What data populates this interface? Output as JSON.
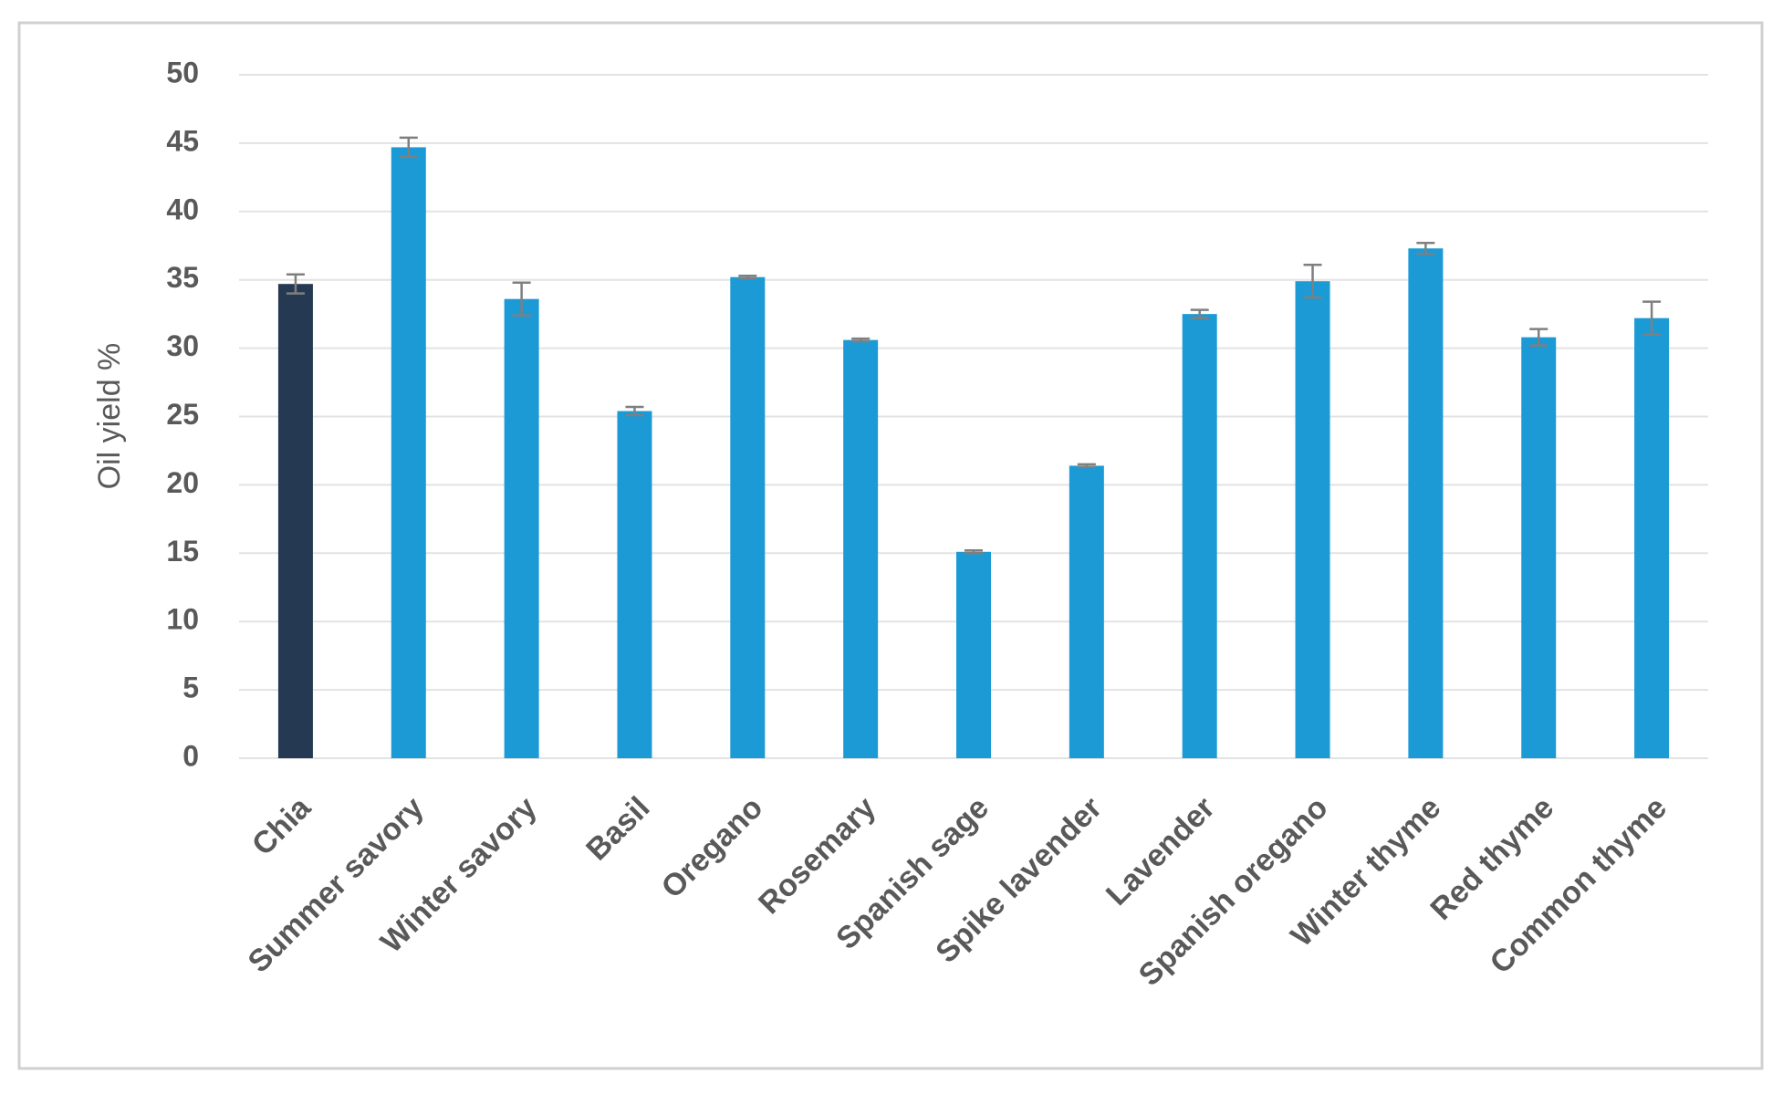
{
  "chart_data": {
    "type": "bar",
    "y_label": "Oil yield %",
    "categories": [
      "Chia",
      "Summer savory",
      "Winter savory",
      "Basil",
      "Oregano",
      "Rosemary",
      "Spanish sage",
      "Spike lavender",
      "Lavender",
      "Spanish oregano",
      "Winter thyme",
      "Red thyme",
      "Common thyme"
    ],
    "values": [
      34.7,
      44.7,
      33.6,
      25.4,
      35.2,
      30.6,
      15.1,
      21.4,
      32.5,
      34.9,
      37.3,
      30.8,
      32.2
    ],
    "errors": [
      0.7,
      0.7,
      1.2,
      0.3,
      0.1,
      0.1,
      0.1,
      0.1,
      0.3,
      1.2,
      0.4,
      0.6,
      1.2
    ],
    "colors": [
      "#253a52",
      "#1b9ad6",
      "#1b9ad6",
      "#1b9ad6",
      "#1b9ad6",
      "#1b9ad6",
      "#1b9ad6",
      "#1b9ad6",
      "#1b9ad6",
      "#1b9ad6",
      "#1b9ad6",
      "#1b9ad6",
      "#1b9ad6"
    ],
    "error_color": "#7f7f7f",
    "ylim": [
      0,
      50
    ],
    "yticks": [
      0,
      5,
      10,
      15,
      20,
      25,
      30,
      35,
      40,
      45,
      50
    ],
    "grid": true
  }
}
